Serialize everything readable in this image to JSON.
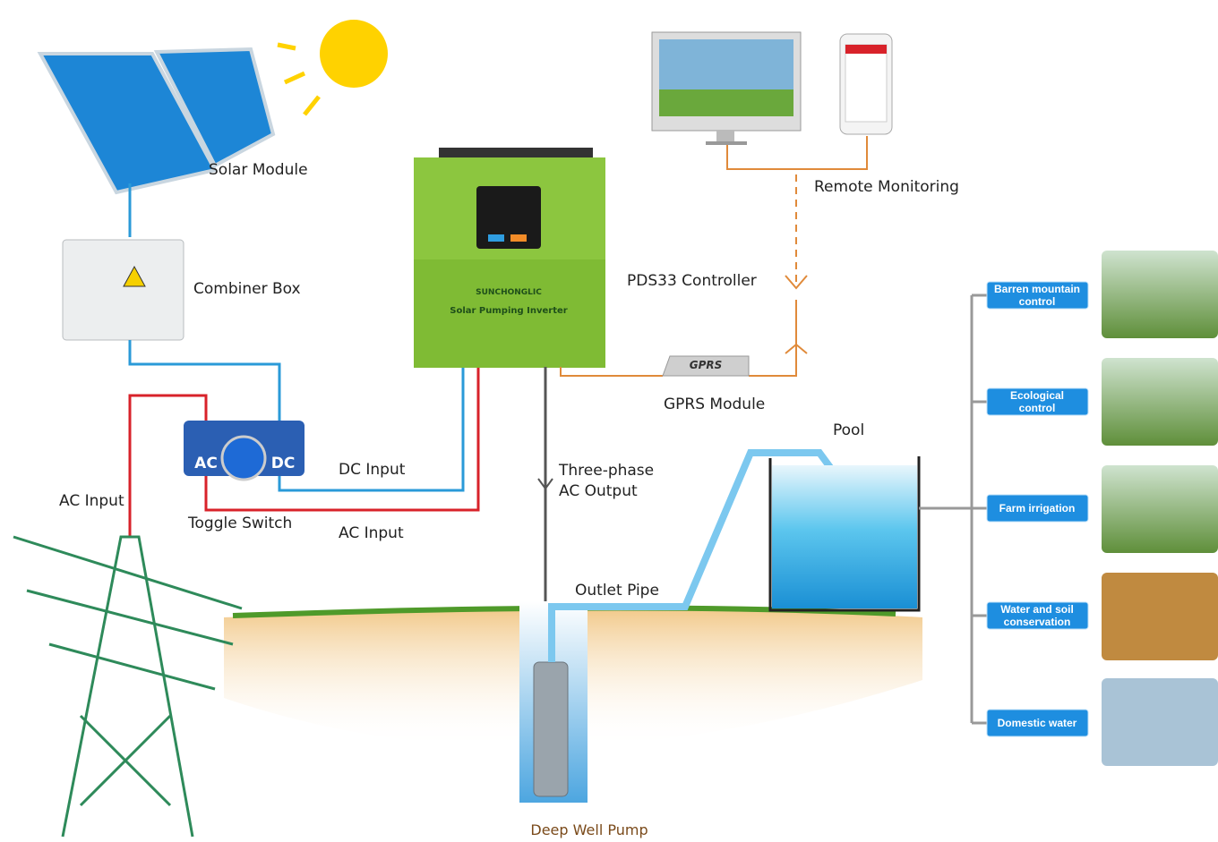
{
  "labels": {
    "solar_module": "Solar Module",
    "combiner_box": "Combiner Box",
    "ac_input_left": "AC Input",
    "toggle_switch": "Toggle Switch",
    "dc_input": "DC Input",
    "ac_input": "AC Input",
    "controller": "PDS33 Controller",
    "remote_monitoring": "Remote Monitoring",
    "gprs_module": "GPRS Module",
    "output": [
      "Three-phase",
      "AC Output"
    ],
    "outlet_pipe": "Outlet Pipe",
    "pool": "Pool",
    "pump": "Deep Well Pump"
  },
  "devices": {
    "switch_ac": "AC",
    "switch_dc": "DC",
    "gprs": "GPRS",
    "brand": "SUNCHONGLIC",
    "inverter": "Solar Pumping Inverter"
  },
  "applications": [
    [
      "Barren mountain",
      "control"
    ],
    [
      "Ecological",
      "control"
    ],
    [
      "Farm irrigation"
    ],
    [
      "Water and soil",
      "conservation"
    ],
    [
      "Domestic water"
    ]
  ]
}
